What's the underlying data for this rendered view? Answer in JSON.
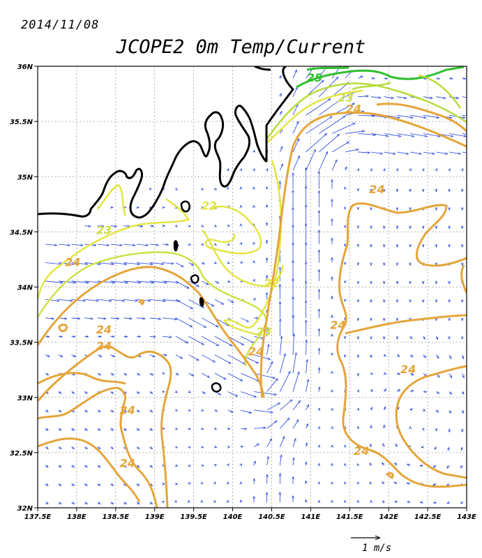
{
  "date": "2014/11/08",
  "title": "JCOPE2    0m Temp/Current",
  "colors": {
    "arrow": "#1f3fe0",
    "contour_22": "#e3e542",
    "contour_23": "#cfe04a",
    "contour_24": "#e4a53a",
    "contour_25": "#2ec02e",
    "coast": "#000000",
    "grid": "#9a9a9a"
  },
  "axes": {
    "lon_ticks": [
      "137.5E",
      "138E",
      "138.5E",
      "139E",
      "139.5E",
      "140E",
      "140.5E",
      "141E",
      "141.5E",
      "142E",
      "142.5E",
      "143E"
    ],
    "lat_ticks": [
      "32N",
      "32.5N",
      "33N",
      "33.5N",
      "34N",
      "34.5N",
      "35N",
      "35.5N",
      "36N"
    ],
    "lon_range": [
      137.5,
      143
    ],
    "lat_range": [
      32,
      36
    ]
  },
  "contour_labels": [
    {
      "text": "24",
      "lon": 137.95,
      "lat": 34.19,
      "color": "contour_24"
    },
    {
      "text": "23",
      "lon": 138.35,
      "lat": 34.48,
      "color": "contour_23"
    },
    {
      "text": "22",
      "lon": 139.7,
      "lat": 34.7,
      "color": "contour_22"
    },
    {
      "text": "22",
      "lon": 140.5,
      "lat": 34.0,
      "color": "contour_22"
    },
    {
      "text": "23",
      "lon": 140.4,
      "lat": 33.56,
      "color": "contour_23"
    },
    {
      "text": "24",
      "lon": 140.3,
      "lat": 33.38,
      "color": "contour_24"
    },
    {
      "text": "24",
      "lon": 138.35,
      "lat": 33.58,
      "color": "contour_24"
    },
    {
      "text": "24",
      "lon": 138.35,
      "lat": 33.43,
      "color": "contour_24"
    },
    {
      "text": "24",
      "lon": 138.65,
      "lat": 32.85,
      "color": "contour_24"
    },
    {
      "text": "24",
      "lon": 138.65,
      "lat": 32.37,
      "color": "contour_24"
    },
    {
      "text": "24",
      "lon": 141.35,
      "lat": 33.62,
      "color": "contour_24"
    },
    {
      "text": "24",
      "lon": 142.25,
      "lat": 33.22,
      "color": "contour_24"
    },
    {
      "text": "24",
      "lon": 141.65,
      "lat": 32.48,
      "color": "contour_24"
    },
    {
      "text": "24",
      "lon": 141.85,
      "lat": 34.85,
      "color": "contour_24"
    },
    {
      "text": "24",
      "lon": 141.55,
      "lat": 35.58,
      "color": "contour_24"
    },
    {
      "text": "23",
      "lon": 141.45,
      "lat": 35.68,
      "color": "contour_23"
    },
    {
      "text": "25",
      "lon": 141.05,
      "lat": 35.86,
      "color": "contour_25"
    }
  ],
  "scale": {
    "label": "1 m/s",
    "speed": 1.0
  }
}
